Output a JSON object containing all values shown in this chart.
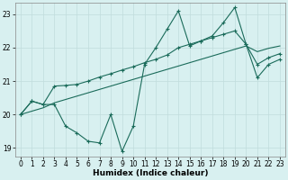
{
  "xlabel": "Humidex (Indice chaleur)",
  "background_color": "#d8f0f0",
  "grid_color": "#c0dcdc",
  "line_color": "#1a6b5a",
  "xlim": [
    -0.5,
    23.5
  ],
  "ylim": [
    18.75,
    23.35
  ],
  "xticks": [
    0,
    1,
    2,
    3,
    4,
    5,
    6,
    7,
    8,
    9,
    10,
    11,
    12,
    13,
    14,
    15,
    16,
    17,
    18,
    19,
    20,
    21,
    22,
    23
  ],
  "yticks": [
    19,
    20,
    21,
    22,
    23
  ],
  "line1_x": [
    0,
    1,
    2,
    3,
    4,
    5,
    6,
    7,
    8,
    9,
    10,
    11,
    12,
    13,
    14,
    15,
    16,
    17,
    18,
    19,
    20,
    21,
    22,
    23
  ],
  "line1_y": [
    20.0,
    20.4,
    20.3,
    20.3,
    19.65,
    19.45,
    19.2,
    19.15,
    20.0,
    18.9,
    19.65,
    21.5,
    22.0,
    22.55,
    23.1,
    22.05,
    22.2,
    22.35,
    22.75,
    23.2,
    22.1,
    21.1,
    21.5,
    21.65
  ],
  "line2_x": [
    0,
    1,
    2,
    3,
    4,
    5,
    6,
    7,
    8,
    9,
    10,
    11,
    12,
    13,
    14,
    15,
    16,
    17,
    18,
    19,
    20,
    21,
    22,
    23
  ],
  "line2_y": [
    20.0,
    20.4,
    20.3,
    20.85,
    20.87,
    20.9,
    21.0,
    21.12,
    21.22,
    21.33,
    21.43,
    21.55,
    21.65,
    21.78,
    22.0,
    22.1,
    22.2,
    22.3,
    22.4,
    22.5,
    22.1,
    21.5,
    21.7,
    21.82
  ],
  "line3_x": [
    0,
    1,
    2,
    3,
    4,
    5,
    6,
    7,
    8,
    9,
    10,
    11,
    12,
    13,
    14,
    15,
    16,
    17,
    18,
    19,
    20,
    21,
    22,
    23
  ],
  "line3_y": [
    20.0,
    20.1,
    20.2,
    20.35,
    20.45,
    20.55,
    20.65,
    20.75,
    20.85,
    20.95,
    21.05,
    21.15,
    21.25,
    21.35,
    21.45,
    21.55,
    21.65,
    21.75,
    21.85,
    21.95,
    22.05,
    21.88,
    21.98,
    22.05
  ],
  "tick_fontsize": 5.5,
  "xlabel_fontsize": 6.5,
  "marker_size": 3.0,
  "linewidth": 0.8
}
